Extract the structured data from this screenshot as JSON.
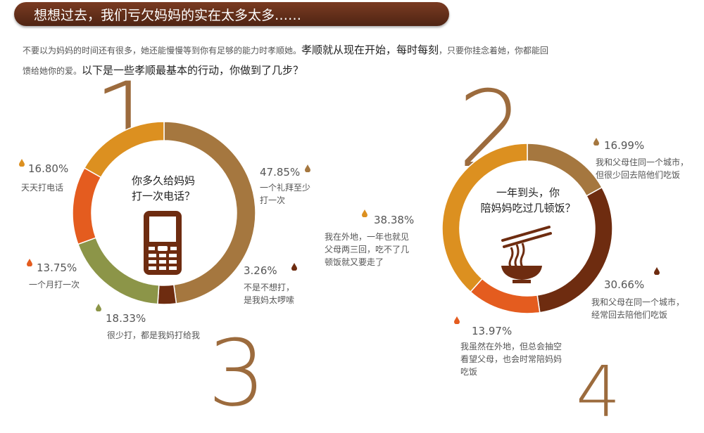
{
  "banner": {
    "title": "想想过去，我们亏欠妈妈的实在太多太多……"
  },
  "intro": {
    "part1": "不要以为妈妈的时间还有很多，她还能慢慢等到你有足够的能力时孝顺她。",
    "part2": "孝顺就从现在开始，每时每刻",
    "part3": "，只要你挂念着她，你都能回",
    "part4": "馈给她你的爱。",
    "part5": "以下是一些孝顺最基本的行动，你做到了几步？"
  },
  "numerals": {
    "n1": "1",
    "n2": "2",
    "n3": "3",
    "n4": "4"
  },
  "colors": {
    "brown": "#a5773f",
    "darkbrown": "#6e2c10",
    "olive": "#8c9548",
    "orange": "#e45c1f",
    "yellow": "#dc9020"
  },
  "chart_data": [
    {
      "type": "pie",
      "title": "你多久给妈妈打一次电话？",
      "title_line1": "你多久给妈妈",
      "title_line2": "打一次电话？",
      "icon": "mobile-phone-icon",
      "slices": [
        {
          "value": 47.85,
          "pct": "47.85%",
          "line1": "一个礼拜至少",
          "line2": "打一次",
          "color": "#a5773f"
        },
        {
          "value": 3.26,
          "pct": "3.26%",
          "line1": "不是不想打，",
          "line2": "是我妈太啰嗦",
          "color": "#6e2c10"
        },
        {
          "value": 18.33,
          "pct": "18.33%",
          "line1": "很少打，都是我妈打给我",
          "line2": "",
          "color": "#8c9548"
        },
        {
          "value": 13.75,
          "pct": "13.75%",
          "line1": "一个月打一次",
          "line2": "",
          "color": "#e45c1f"
        },
        {
          "value": 16.8,
          "pct": "16.80%",
          "line1": "天天打电话",
          "line2": "",
          "color": "#dc9020"
        }
      ]
    },
    {
      "type": "pie",
      "title": "一年到头，你陪妈妈吃过几顿饭？",
      "title_line1": "一年到头，你",
      "title_line2": "陪妈妈吃过几顿饭？",
      "icon": "noodle-bowl-icon",
      "slices": [
        {
          "value": 16.99,
          "pct": "16.99%",
          "line1": "我和父母住同一个城市，",
          "line2": "但很少回去陪他们吃饭",
          "line3": "",
          "color": "#a5773f"
        },
        {
          "value": 30.66,
          "pct": "30.66%",
          "line1": "我和父母在同一个城市，",
          "line2": "经常回去陪他们吃饭",
          "line3": "",
          "color": "#6e2c10"
        },
        {
          "value": 13.97,
          "pct": "13.97%",
          "line1": "我虽然在外地，但总会抽空",
          "line2": "看望父母，也会时常陪妈妈",
          "line3": "吃饭",
          "color": "#e45c1f"
        },
        {
          "value": 38.38,
          "pct": "38.38%",
          "line1": "我在外地，一年也就见",
          "line2": "父母两三回，吃不了几",
          "line3": "顿饭就又要走了",
          "color": "#dc9020"
        }
      ]
    }
  ]
}
